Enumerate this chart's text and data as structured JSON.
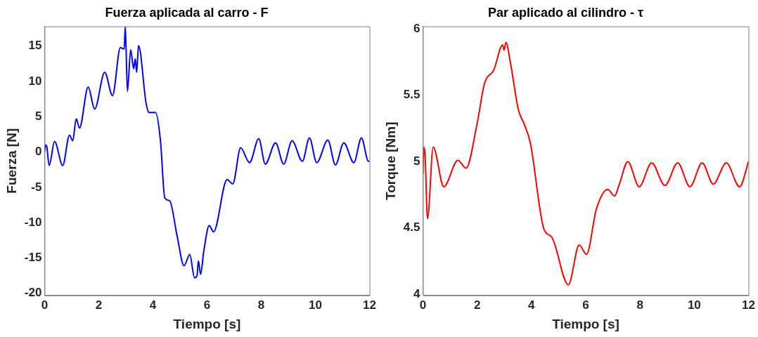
{
  "chart_data": [
    {
      "type": "line",
      "title": "Fuerza aplicada al carro - F",
      "xlabel": "Tiempo [s]",
      "ylabel": "Fuerza [N]",
      "xlim": [
        0,
        12
      ],
      "xticks": [
        0,
        2,
        4,
        6,
        8,
        10,
        12
      ],
      "ylim": [
        -20.3,
        17.8
      ],
      "yticks": [
        -20,
        -15,
        -10,
        -5,
        0,
        5,
        10,
        15
      ],
      "grid": false,
      "legend": false,
      "marker": "none",
      "line_style": "solid",
      "series": [
        {
          "color": "#0000ff",
          "x": [
            0,
            0.04,
            0.08,
            0.17,
            0.37,
            0.67,
            0.92,
            1.04,
            1.17,
            1.29,
            1.61,
            1.85,
            2.22,
            2.51,
            2.8,
            2.94,
            2.98,
            3.06,
            3.18,
            3.29,
            3.35,
            3.4,
            3.47,
            3.75,
            3.86,
            4.1,
            4.28,
            4.44,
            4.62,
            4.9,
            5.15,
            5.36,
            5.54,
            5.63,
            5.68,
            5.76,
            5.88,
            6.08,
            6.24,
            6.74,
            6.95,
            7.24,
            7.57,
            7.91,
            8.15,
            8.53,
            8.83,
            9.14,
            9.52,
            9.78,
            10.05,
            10.46,
            10.74,
            11.05,
            11.42,
            11.7,
            11.96,
            12
          ],
          "values": [
            0.1,
            1.0,
            0.8,
            -1.9,
            1.5,
            -1.9,
            2.4,
            1.6,
            4.7,
            3.4,
            9.2,
            6.1,
            11.3,
            8.0,
            14.8,
            14.6,
            17.8,
            8.6,
            14.5,
            11.8,
            13.2,
            11.3,
            15.1,
            6.9,
            5.6,
            5.6,
            1.6,
            -6.5,
            -6.9,
            -12.0,
            -16.1,
            -14.5,
            -17.8,
            -17.5,
            -15.4,
            -17.3,
            -14.0,
            -10.4,
            -11.3,
            -3.9,
            -4.5,
            0.6,
            -1.5,
            1.9,
            -1.7,
            1.3,
            -1.7,
            1.6,
            -1.3,
            2.0,
            -1.5,
            1.7,
            -1.8,
            1.3,
            -1.5,
            2.0,
            -1.3,
            -1.3
          ]
        }
      ]
    },
    {
      "type": "line",
      "title": "Par aplicado al cilindro - τ",
      "xlabel": "Tiempo [s]",
      "ylabel": "Torque [Nm]",
      "xlim": [
        0,
        12
      ],
      "xticks": [
        0,
        2,
        4,
        6,
        8,
        10,
        12
      ],
      "ylim": [
        3.99,
        6.02
      ],
      "yticks": [
        4,
        4.5,
        5,
        5.5,
        6
      ],
      "grid": false,
      "legend": false,
      "marker": "none",
      "line_style": "solid",
      "series": [
        {
          "color": "#ff0000",
          "x": [
            0,
            0.04,
            0.08,
            0.17,
            0.38,
            0.77,
            1.29,
            1.59,
            2.0,
            2.27,
            2.61,
            2.94,
            2.99,
            3.06,
            3.23,
            3.52,
            3.74,
            3.96,
            4.46,
            4.75,
            5.36,
            5.76,
            6.03,
            6.39,
            6.81,
            7.06,
            7.24,
            7.55,
            7.97,
            8.43,
            8.92,
            9.39,
            9.84,
            10.29,
            10.7,
            11.18,
            11.67,
            12
          ],
          "values": [
            4.91,
            5.11,
            5.05,
            4.57,
            5.11,
            4.81,
            5.01,
            4.95,
            5.29,
            5.59,
            5.69,
            5.88,
            5.84,
            5.9,
            5.74,
            5.39,
            5.28,
            5.14,
            4.49,
            4.43,
            4.07,
            4.37,
            4.3,
            4.64,
            4.79,
            4.74,
            4.83,
            5.0,
            4.81,
            4.99,
            4.82,
            4.99,
            4.81,
            4.99,
            4.83,
            4.99,
            4.81,
            5.0
          ]
        }
      ]
    }
  ]
}
